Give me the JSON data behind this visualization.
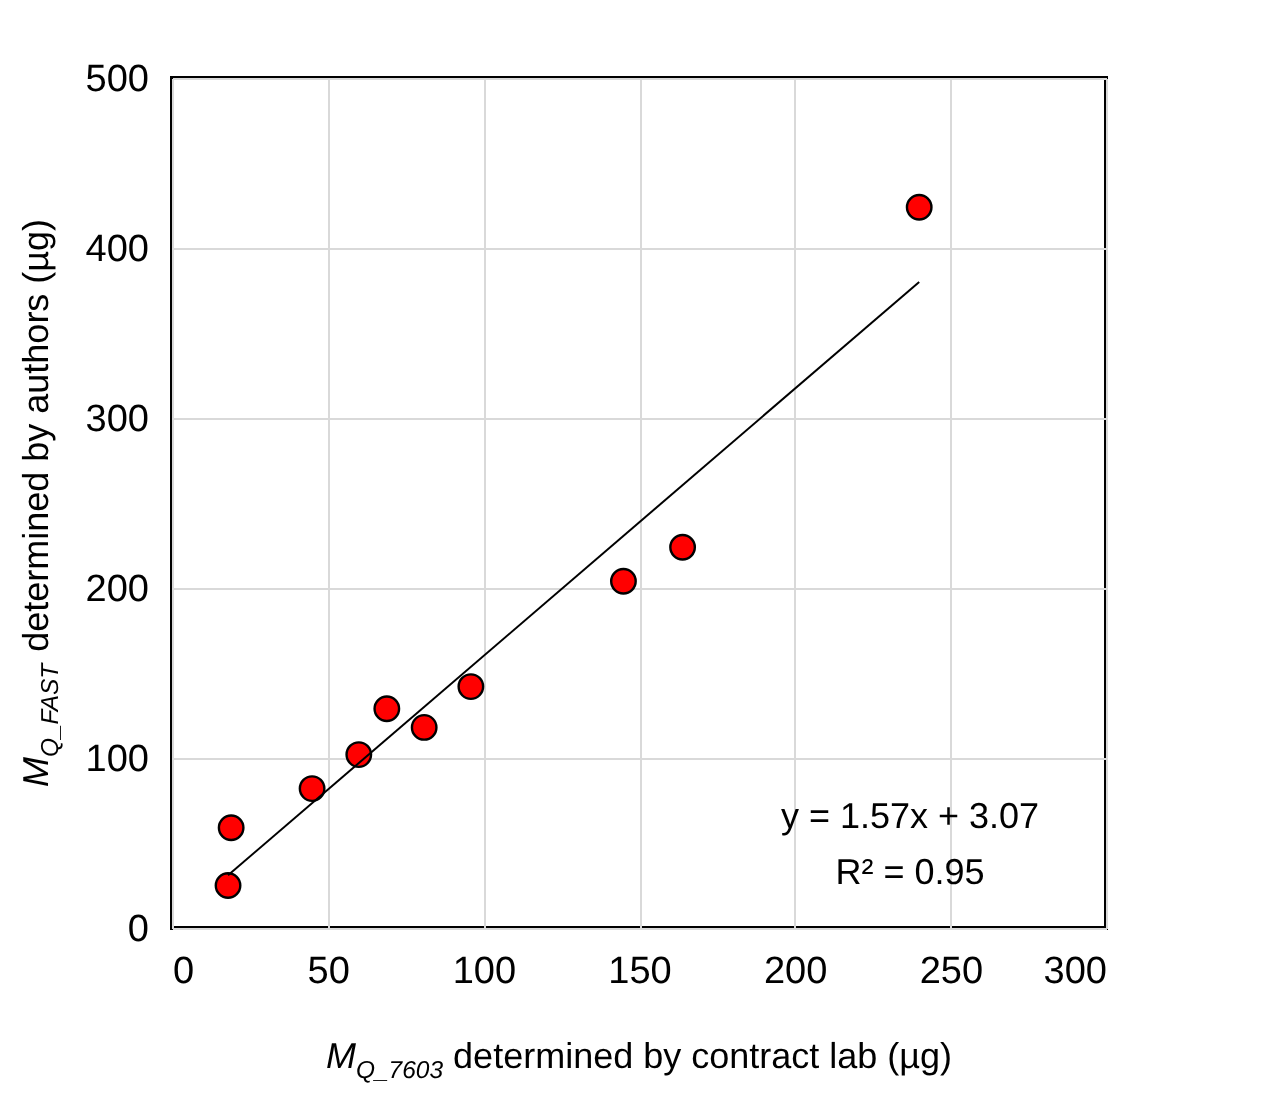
{
  "chart_data": {
    "type": "scatter",
    "xlabel": "M$_{Q_7603}$ determined by contract lab (µg)",
    "ylabel": "M$_{Q_FAST}$ determined by authors (µg)",
    "xlim": [
      0,
      300
    ],
    "xticks": [
      0,
      50,
      100,
      150,
      200,
      250,
      300
    ],
    "ylim": [
      0,
      500
    ],
    "yticks": [
      0,
      100,
      200,
      300,
      400,
      500
    ],
    "grid": true,
    "marker": "circle",
    "series": [
      {
        "color": "#ff0000",
        "x": [
          18,
          19,
          45,
          60,
          69,
          81,
          96,
          145,
          164,
          240
        ],
        "values": [
          25,
          59,
          82,
          102,
          129,
          118,
          142,
          204,
          224,
          424
        ]
      },
      {
        "type": "line",
        "color": "#000000",
        "x": [
          18,
          240
        ],
        "values": [
          31,
          380
        ],
        "line_style": "solid",
        "marker": "none"
      }
    ],
    "annotations": [
      "y = 1.57x + 3.07",
      "R² = 0.95"
    ]
  }
}
